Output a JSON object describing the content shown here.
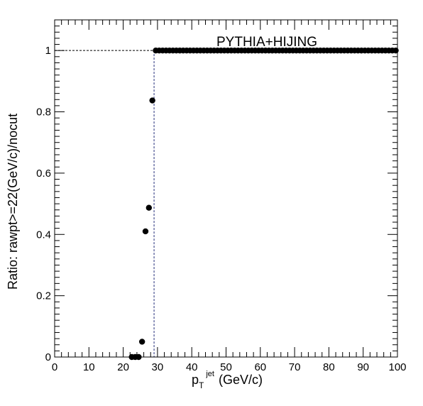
{
  "chart_data": {
    "type": "scatter",
    "title": "PYTHIA+HIJING",
    "xlabel": {
      "main": "p",
      "sup": "jet",
      "sub": "T",
      "unit": "(GeV/c)"
    },
    "ylabel": "Ratio: rawpt>=22(GeV/c)/nocut",
    "xlim": [
      0,
      100
    ],
    "ylim": [
      0,
      1.1
    ],
    "x_ticks": [
      0,
      10,
      20,
      30,
      40,
      50,
      60,
      70,
      80,
      90,
      100
    ],
    "y_ticks": [
      0,
      0.2,
      0.4,
      0.6,
      0.8,
      1
    ],
    "x_tick_labels": [
      "0",
      "10",
      "20",
      "30",
      "40",
      "50",
      "60",
      "70",
      "80",
      "90",
      "100"
    ],
    "y_tick_labels": [
      "0",
      "0.2",
      "0.4",
      "0.6",
      "0.8",
      "1"
    ],
    "reference_lines": {
      "y": 1,
      "x": 29
    },
    "series": [
      {
        "marker": "circle",
        "color": "#000000",
        "x": [
          22.5,
          23.5,
          24.5,
          25.5,
          26.5,
          27.5,
          28.5,
          29.5,
          30.5,
          31.5,
          32.5,
          33.5,
          34.5,
          35.5,
          36.5,
          37.5,
          38.5,
          39.5,
          40.5,
          41.5,
          42.5,
          43.5,
          44.5,
          45.5,
          46.5,
          47.5,
          48.5,
          49.5,
          50.5,
          51.5,
          52.5,
          53.5,
          54.5,
          55.5,
          56.5,
          57.5,
          58.5,
          59.5,
          60.5,
          61.5,
          62.5,
          63.5,
          64.5,
          65.5,
          66.5,
          67.5,
          68.5,
          69.5,
          70.5,
          71.5,
          72.5,
          73.5,
          74.5,
          75.5,
          76.5,
          77.5,
          78.5,
          79.5,
          80.5,
          81.5,
          82.5,
          83.5,
          84.5,
          85.5,
          86.5,
          87.5,
          88.5,
          89.5,
          90.5,
          91.5,
          92.5,
          93.5,
          94.5,
          95.5,
          96.5,
          97.5,
          98.5,
          99.5
        ],
        "y": [
          0,
          0,
          0,
          0.05,
          0.41,
          0.487,
          0.837,
          1,
          1,
          1,
          1,
          1,
          1,
          1,
          1,
          1,
          1,
          1,
          1,
          1,
          1,
          1,
          1,
          1,
          1,
          1,
          1,
          1,
          1,
          1,
          1,
          1,
          1,
          1,
          1,
          1,
          1,
          1,
          1,
          1,
          1,
          1,
          1,
          1,
          1,
          1,
          1,
          1,
          1,
          1,
          1,
          1,
          1,
          1,
          1,
          1,
          1,
          1,
          1,
          1,
          1,
          1,
          1,
          1,
          1,
          1,
          1,
          1,
          1,
          1,
          1,
          1,
          1,
          1,
          1,
          1,
          1,
          1
        ]
      }
    ],
    "grid": false,
    "legend": false
  }
}
